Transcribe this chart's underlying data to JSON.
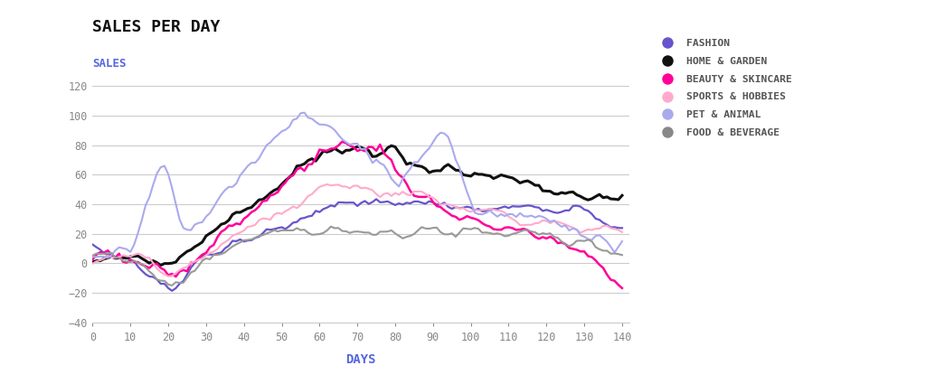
{
  "title": "SALES PER DAY",
  "sales_label": "SALES",
  "xlabel": "DAYS",
  "ylim": [
    -40,
    130
  ],
  "xlim": [
    0,
    142
  ],
  "yticks": [
    -40,
    -20,
    0,
    20,
    40,
    60,
    80,
    100,
    120
  ],
  "xticks": [
    0,
    10,
    20,
    30,
    40,
    50,
    60,
    70,
    80,
    90,
    100,
    110,
    120,
    130,
    140
  ],
  "title_color": "#111111",
  "sales_label_color": "#5566dd",
  "xlabel_color": "#5566dd",
  "tick_color": "#888888",
  "grid_color": "#cccccc",
  "background_color": "#ffffff",
  "series": [
    {
      "name": "FASHION",
      "color": "#6655cc",
      "lw": 1.6
    },
    {
      "name": "HOME & GARDEN",
      "color": "#111111",
      "lw": 2.2
    },
    {
      "name": "BEAUTY & SKINCARE",
      "color": "#ff0099",
      "lw": 1.8
    },
    {
      "name": "SPORTS & HOBBIES",
      "color": "#ffaacc",
      "lw": 1.5
    },
    {
      "name": "PET & ANIMAL",
      "color": "#aaaaee",
      "lw": 1.5
    },
    {
      "name": "FOOD & BEVERAGE",
      "color": "#999999",
      "lw": 1.5
    }
  ],
  "legend_dot_colors": [
    "#6655cc",
    "#111111",
    "#ff0099",
    "#ffaacc",
    "#aaaaee",
    "#888888"
  ],
  "n_days": 141
}
